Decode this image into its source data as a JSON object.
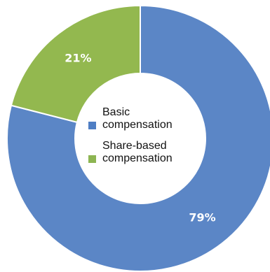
{
  "chart_data": {
    "type": "pie",
    "variant": "donut",
    "categories": [
      "Basic compensation",
      "Share-based compensation"
    ],
    "values": [
      79,
      21
    ],
    "data_labels": [
      "79%",
      "21%"
    ],
    "colors": [
      "#5b86c6",
      "#93b84f"
    ],
    "legend": {
      "placement": "center",
      "items": [
        {
          "label": "Basic\ncompensation",
          "color": "#4f7ec4"
        },
        {
          "label": "Share-based\ncompensation",
          "color": "#8db552"
        }
      ]
    }
  }
}
